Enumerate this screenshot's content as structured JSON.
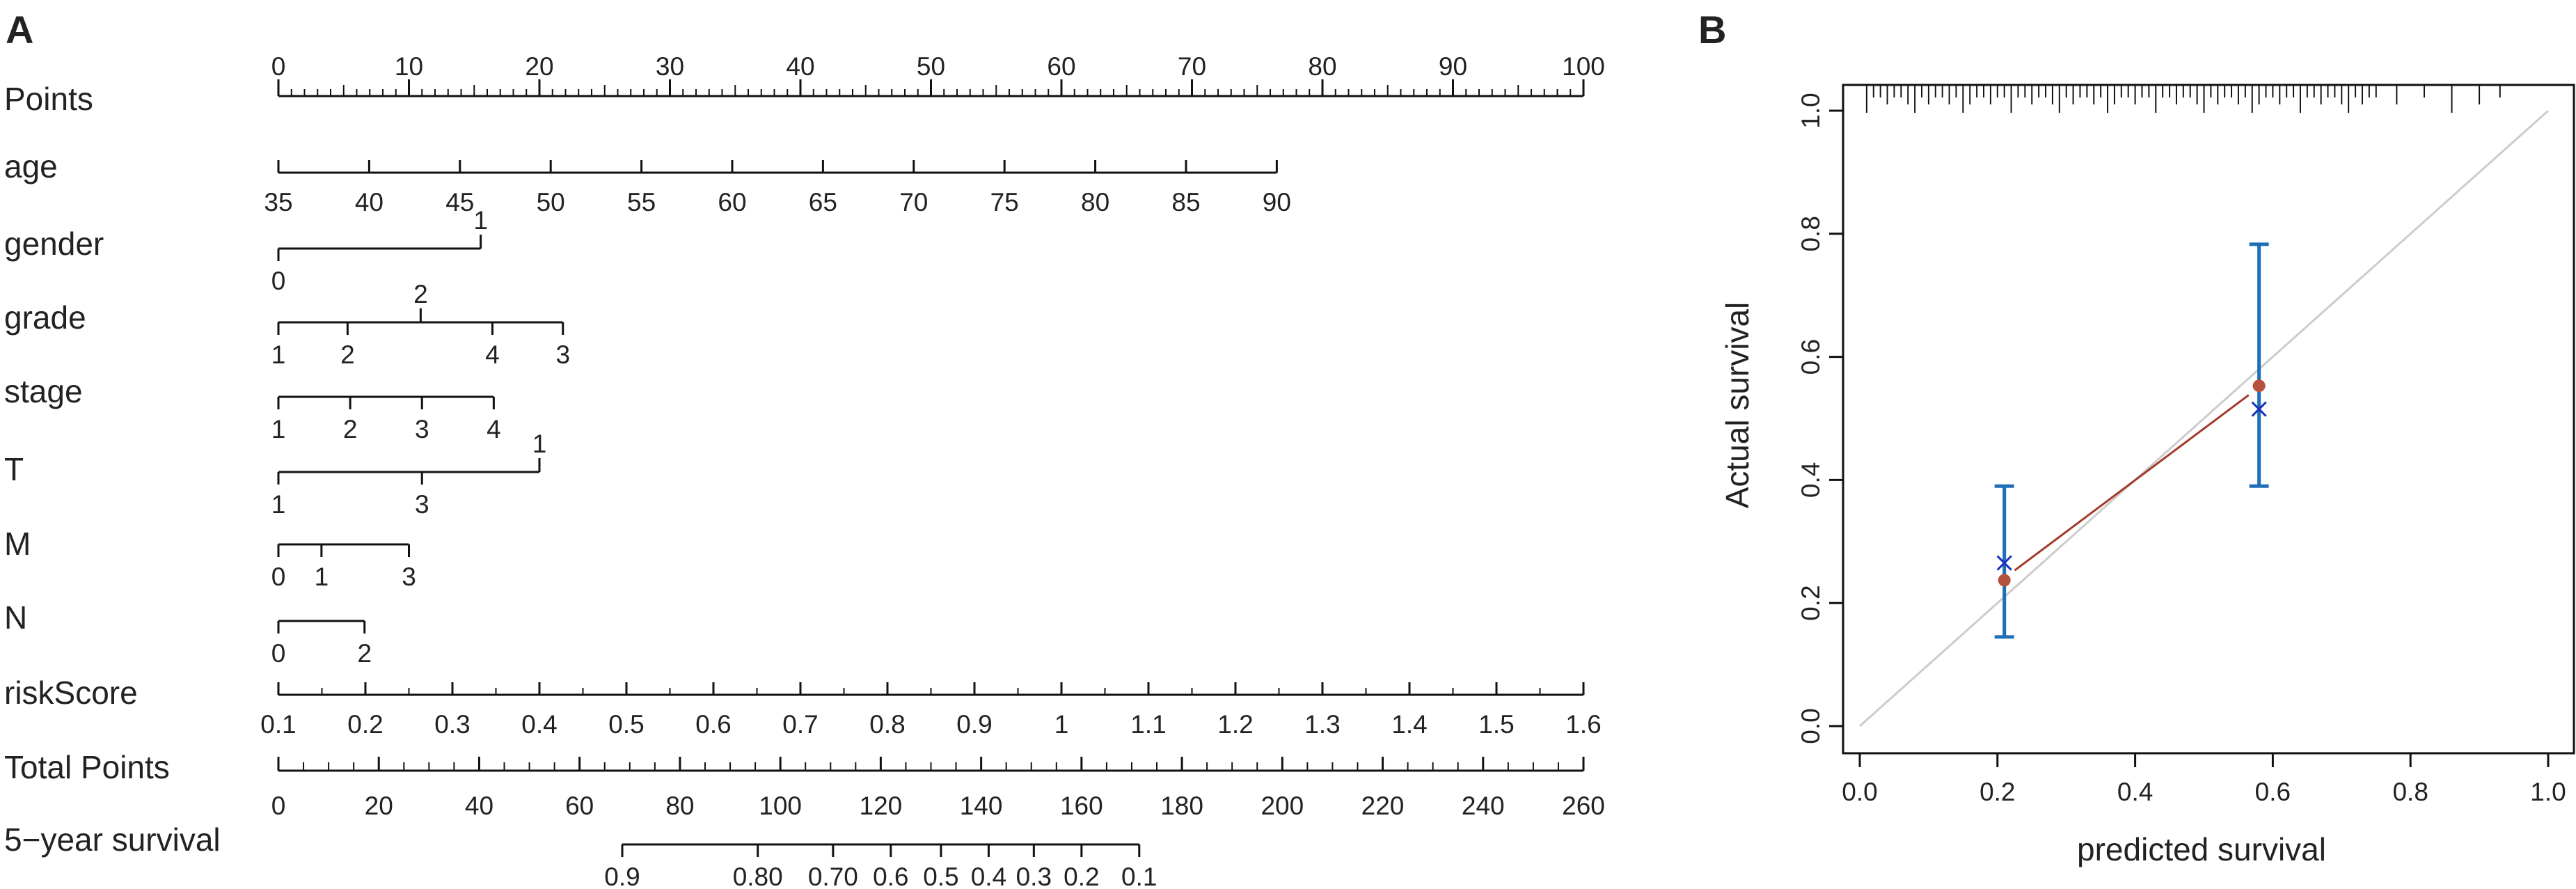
{
  "chart_data": [
    {
      "type": "nomogram",
      "panel_label": "A",
      "points_scale": {
        "label": "Points",
        "min": 0,
        "max": 100,
        "ticks": [
          0,
          10,
          20,
          30,
          40,
          50,
          60,
          70,
          80,
          90,
          100
        ]
      },
      "rows": [
        {
          "name": "age",
          "label": "age",
          "kind": "continuous",
          "min": 35,
          "max": 90,
          "ticks": [
            35,
            40,
            45,
            50,
            55,
            60,
            65,
            70,
            75,
            80,
            85,
            90
          ],
          "points_at_min": 0,
          "points_at_max": 76.5
        },
        {
          "name": "gender",
          "label": "gender",
          "kind": "categorical",
          "levels": [
            {
              "label": "0",
              "points": 0,
              "side": "below"
            },
            {
              "label": "1",
              "points": 15.5,
              "side": "above"
            }
          ]
        },
        {
          "name": "grade",
          "label": "grade",
          "kind": "categorical",
          "levels": [
            {
              "label": "1",
              "points": 0,
              "side": "below"
            },
            {
              "label": "2",
              "points": 10.9,
              "side": "above"
            },
            {
              "label": "2",
              "points": 5.3,
              "side": "below"
            },
            {
              "label": "4",
              "points": 16.4,
              "side": "below"
            },
            {
              "label": "3",
              "points": 21.8,
              "side": "below"
            }
          ]
        },
        {
          "name": "stage",
          "label": "stage",
          "kind": "categorical",
          "levels": [
            {
              "label": "1",
              "points": 0,
              "side": "below"
            },
            {
              "label": "2",
              "points": 5.5,
              "side": "below"
            },
            {
              "label": "3",
              "points": 11.0,
              "side": "below"
            },
            {
              "label": "4",
              "points": 16.5,
              "side": "below"
            }
          ]
        },
        {
          "name": "T",
          "label": "T",
          "kind": "categorical",
          "levels": [
            {
              "label": "1",
              "points": 0,
              "side": "below"
            },
            {
              "label": "3",
              "points": 11.0,
              "side": "below"
            },
            {
              "label": "1",
              "points": 20.0,
              "side": "above"
            }
          ]
        },
        {
          "name": "M",
          "label": "M",
          "kind": "categorical",
          "levels": [
            {
              "label": "0",
              "points": 0,
              "side": "below"
            },
            {
              "label": "1",
              "points": 3.3,
              "side": "below"
            },
            {
              "label": "3",
              "points": 10.0,
              "side": "below"
            }
          ]
        },
        {
          "name": "N",
          "label": "N",
          "kind": "categorical",
          "levels": [
            {
              "label": "0",
              "points": 0,
              "side": "below"
            },
            {
              "label": "2",
              "points": 6.6,
              "side": "below"
            }
          ]
        },
        {
          "name": "riskScore",
          "label": "riskScore",
          "kind": "continuous",
          "min": 0.1,
          "max": 1.6,
          "ticks": [
            "0.1",
            "0.2",
            "0.3",
            "0.4",
            "0.5",
            "0.6",
            "0.7",
            "0.8",
            "0.9",
            "1",
            "1.1",
            "1.2",
            "1.3",
            "1.4",
            "1.5",
            "1.6"
          ],
          "points_at_min": 0,
          "points_at_max": 100
        }
      ],
      "total_points": {
        "label": "Total Points",
        "min": 0,
        "max": 260,
        "ticks": [
          0,
          20,
          40,
          60,
          80,
          100,
          120,
          140,
          160,
          180,
          200,
          220,
          240,
          260
        ]
      },
      "survival": {
        "label": "5−year survival",
        "ticks": [
          {
            "label": "0.9",
            "total_points": 68.5
          },
          {
            "label": "0.80",
            "total_points": 95.5
          },
          {
            "label": "0.70",
            "total_points": 110.5
          },
          {
            "label": "0.6",
            "total_points": 122
          },
          {
            "label": "0.5",
            "total_points": 132
          },
          {
            "label": "0.4",
            "total_points": 141.5
          },
          {
            "label": "0.3",
            "total_points": 150.5
          },
          {
            "label": "0.2",
            "total_points": 160
          },
          {
            "label": "0.1",
            "total_points": 171.5
          }
        ]
      }
    },
    {
      "type": "scatter",
      "panel_label": "B",
      "xlabel": "predicted survival",
      "ylabel": "Actual survival",
      "xlim": [
        0,
        1
      ],
      "ylim": [
        0,
        1
      ],
      "x_ticks": [
        "0.0",
        "0.2",
        "0.4",
        "0.6",
        "0.8",
        "1.0"
      ],
      "y_ticks": [
        "0.0",
        "0.2",
        "0.4",
        "0.6",
        "0.8",
        "1.0"
      ],
      "grid": false,
      "reference_line": {
        "from": [
          0,
          0
        ],
        "to": [
          1,
          1
        ],
        "color": "#cccccc"
      },
      "observed": [
        {
          "x": 0.21,
          "y": 0.237,
          "ci_low": 0.145,
          "ci_high": 0.39
        },
        {
          "x": 0.58,
          "y": 0.553,
          "ci_low": 0.39,
          "ci_high": 0.783
        }
      ],
      "bias_corrected": [
        {
          "x": 0.21,
          "y": 0.265
        },
        {
          "x": 0.58,
          "y": 0.515
        }
      ],
      "calibration_line": {
        "from": [
          0.225,
          0.253
        ],
        "to": [
          0.565,
          0.538
        ]
      },
      "rug_x": [
        0.01,
        0.02,
        0.03,
        0.04,
        0.05,
        0.06,
        0.07,
        0.08,
        0.09,
        0.1,
        0.11,
        0.12,
        0.13,
        0.14,
        0.15,
        0.16,
        0.17,
        0.18,
        0.19,
        0.2,
        0.21,
        0.22,
        0.23,
        0.24,
        0.25,
        0.26,
        0.27,
        0.28,
        0.29,
        0.3,
        0.31,
        0.32,
        0.33,
        0.34,
        0.35,
        0.36,
        0.37,
        0.38,
        0.39,
        0.4,
        0.41,
        0.42,
        0.43,
        0.44,
        0.45,
        0.46,
        0.47,
        0.48,
        0.49,
        0.5,
        0.51,
        0.52,
        0.53,
        0.54,
        0.55,
        0.56,
        0.57,
        0.58,
        0.59,
        0.6,
        0.61,
        0.62,
        0.63,
        0.64,
        0.65,
        0.66,
        0.67,
        0.68,
        0.69,
        0.7,
        0.71,
        0.72,
        0.73,
        0.74,
        0.75,
        0.78,
        0.82,
        0.86,
        0.9,
        0.93
      ],
      "colors": {
        "ci": "#1e6fb5",
        "observed_point": "#b5513d",
        "bias_marker": "#1a2fbf",
        "calibration_line": "#a33a2a"
      }
    }
  ]
}
